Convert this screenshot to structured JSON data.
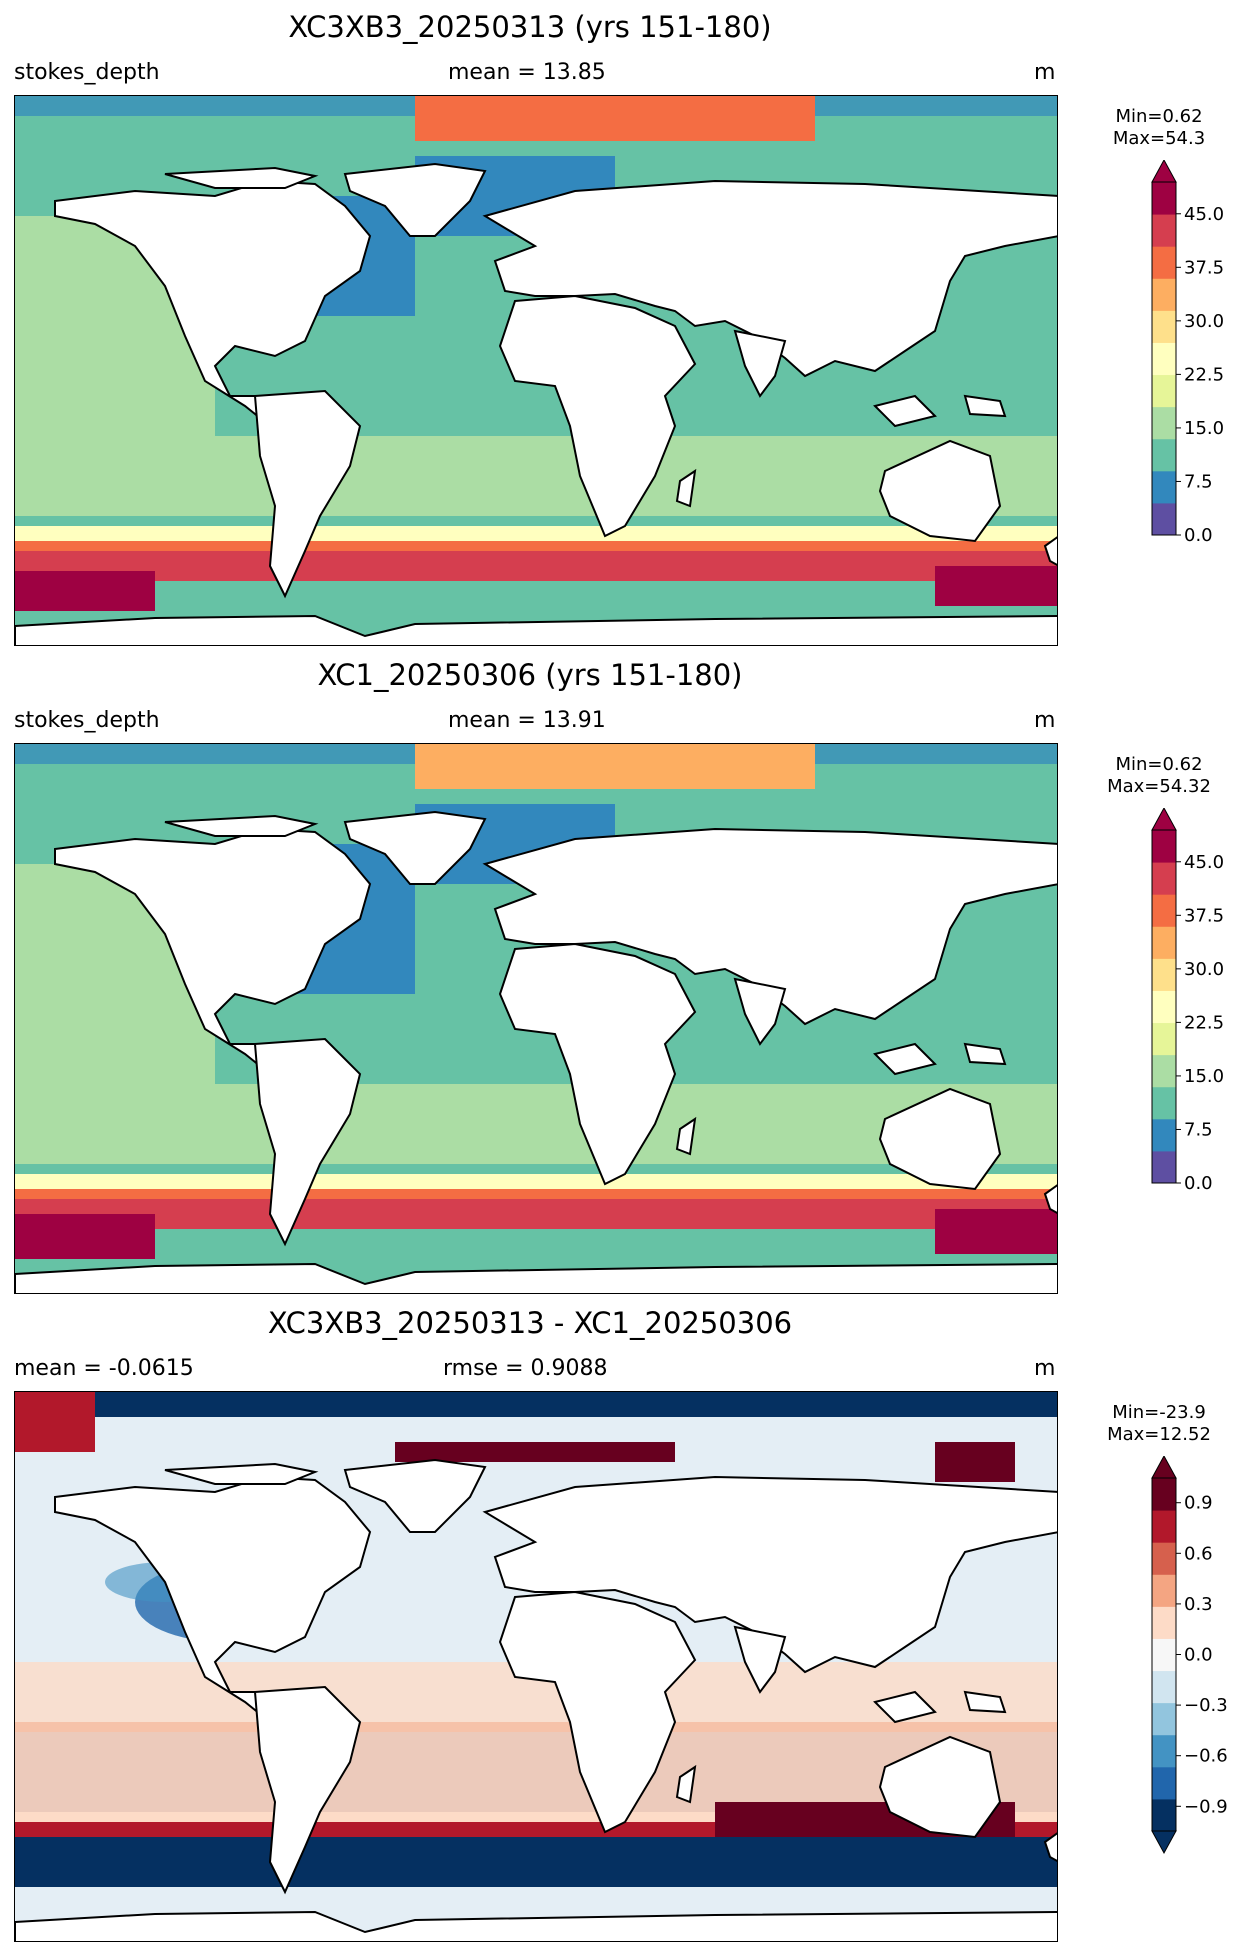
{
  "colors": {
    "spectral": [
      "#5e4fa2",
      "#3288bd",
      "#66c2a5",
      "#abdda4",
      "#e6f598",
      "#ffffbf",
      "#fee08b",
      "#fdae61",
      "#f46d43",
      "#d53e4f",
      "#9e0142"
    ],
    "rdbu": [
      "#053061",
      "#2166ac",
      "#4393c3",
      "#92c5de",
      "#d1e5f0",
      "#f7f7f7",
      "#fddbc7",
      "#f4a582",
      "#d6604d",
      "#b2182b",
      "#67001f"
    ],
    "land": "#ffffff",
    "coast": "#000000"
  },
  "panels": [
    {
      "title": "XC3XB3_20250313 (yrs 151-180)",
      "left_label": "stokes_depth",
      "center_label": "mean = 13.85",
      "units": "m",
      "minmax": [
        "Min=0.62",
        "Max=54.3"
      ],
      "cmap": "spectral",
      "ticks": [
        "0.0",
        "7.5",
        "15.0",
        "22.5",
        "30.0",
        "37.5",
        "45.0"
      ]
    },
    {
      "title": "XC1_20250306 (yrs 151-180)",
      "left_label": "stokes_depth",
      "center_label": "mean = 13.91",
      "units": "m",
      "minmax": [
        "Min=0.62",
        "Max=54.32"
      ],
      "cmap": "spectral",
      "ticks": [
        "0.0",
        "7.5",
        "15.0",
        "22.5",
        "30.0",
        "37.5",
        "45.0"
      ]
    },
    {
      "title": "XC3XB3_20250313 - XC1_20250306",
      "left_label": "mean = -0.0615",
      "center_label": "rmse = 0.9088",
      "units": "m",
      "minmax": [
        "Min=-23.9",
        "Max=12.52"
      ],
      "cmap": "rdbu",
      "ticks": [
        "−0.9",
        "−0.6",
        "−0.3",
        "0.0",
        "0.3",
        "0.6",
        "0.9"
      ]
    }
  ]
}
